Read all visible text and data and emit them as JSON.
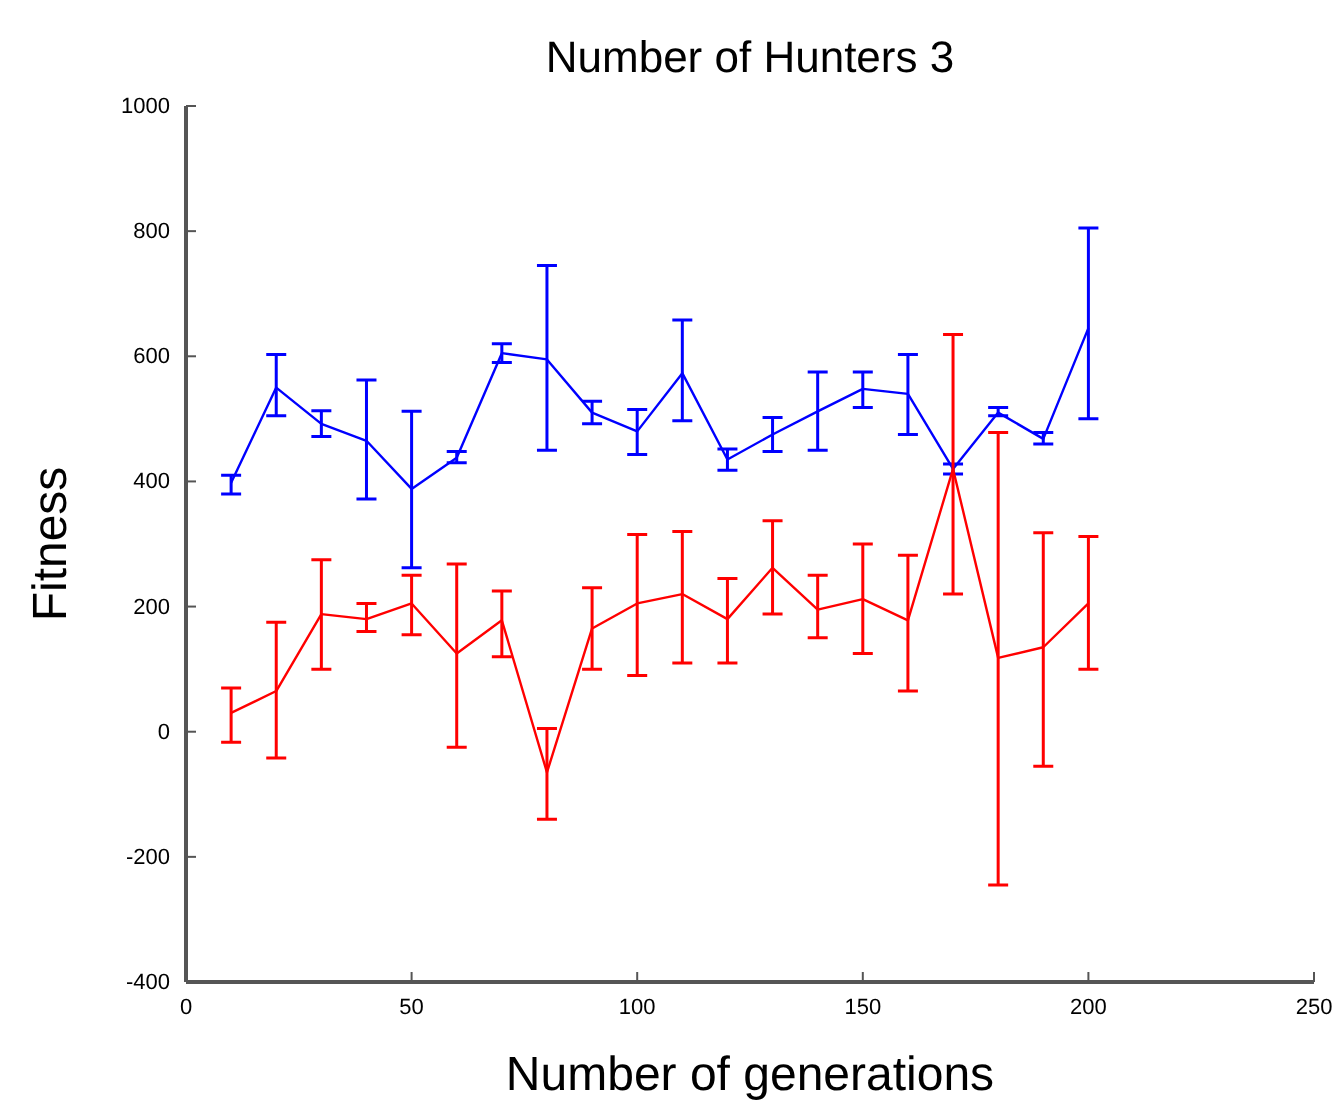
{
  "chart_data": {
    "type": "line",
    "title": "Number of Hunters 3",
    "xlabel": "Number of generations",
    "ylabel": "Fitness",
    "x": [
      10,
      20,
      30,
      40,
      50,
      60,
      70,
      80,
      90,
      100,
      110,
      120,
      130,
      140,
      150,
      160,
      170,
      180,
      190,
      200
    ],
    "xlim": [
      0,
      250
    ],
    "xticks": [
      0,
      50,
      100,
      150,
      200,
      250
    ],
    "ylim": [
      -400,
      1000
    ],
    "yticks": [
      -400,
      -200,
      0,
      200,
      400,
      600,
      800,
      1000
    ],
    "marker": "none",
    "line_style": "solid",
    "series": [
      {
        "color": "#0000ff",
        "values": [
          398,
          550,
          492,
          465,
          388,
          438,
          605,
          595,
          510,
          480,
          573,
          435,
          475,
          512,
          548,
          540,
          420,
          510,
          468,
          645
        ],
        "errors": [
          [
            380,
            410
          ],
          [
            505,
            603
          ],
          [
            472,
            513
          ],
          [
            372,
            562
          ],
          [
            262,
            512
          ],
          [
            430,
            448
          ],
          [
            590,
            620
          ],
          [
            450,
            745
          ],
          [
            492,
            528
          ],
          [
            443,
            515
          ],
          [
            497,
            658
          ],
          [
            418,
            452
          ],
          [
            448,
            502
          ],
          [
            450,
            575
          ],
          [
            518,
            575
          ],
          [
            475,
            603
          ],
          [
            412,
            428
          ],
          [
            505,
            518
          ],
          [
            460,
            478
          ],
          [
            500,
            805
          ]
        ]
      },
      {
        "color": "#ff0000",
        "values": [
          30,
          65,
          188,
          180,
          205,
          125,
          178,
          -65,
          165,
          205,
          220,
          180,
          262,
          195,
          212,
          178,
          420,
          118,
          135,
          205
        ],
        "errors": [
          [
            -17,
            70
          ],
          [
            -42,
            175
          ],
          [
            100,
            275
          ],
          [
            160,
            205
          ],
          [
            155,
            250
          ],
          [
            -25,
            268
          ],
          [
            120,
            225
          ],
          [
            -140,
            5
          ],
          [
            100,
            230
          ],
          [
            90,
            315
          ],
          [
            110,
            320
          ],
          [
            110,
            245
          ],
          [
            188,
            337
          ],
          [
            150,
            250
          ],
          [
            125,
            300
          ],
          [
            65,
            282
          ],
          [
            220,
            635
          ],
          [
            -245,
            478
          ],
          [
            -55,
            318
          ],
          [
            100,
            312
          ]
        ]
      }
    ]
  }
}
